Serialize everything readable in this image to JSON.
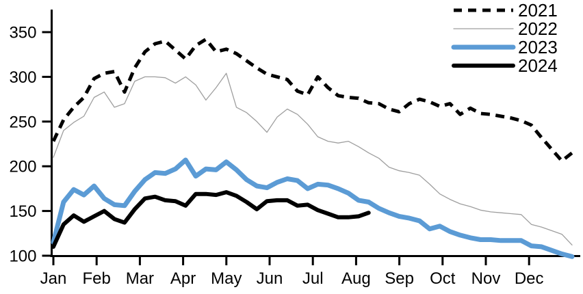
{
  "chart_data": {
    "type": "line",
    "title": "",
    "xlabel": "",
    "ylabel": "",
    "background_color": "#ffffff",
    "grid": false,
    "x_axis": {
      "tick_labels": [
        "Jan",
        "Feb",
        "Mar",
        "Apr",
        "May",
        "Jun",
        "Jul",
        "Aug",
        "Sep",
        "Oct",
        "Nov",
        "Dec"
      ],
      "unit": "week-of-year (52 points per full year)"
    },
    "y_axis": {
      "min": 100,
      "max": 350,
      "tick_step": 50,
      "tick_labels": [
        "100",
        "150",
        "200",
        "250",
        "300",
        "350"
      ]
    },
    "legend": {
      "position": "top-right",
      "entries": [
        "2021",
        "2022",
        "2023",
        "2024"
      ]
    },
    "series": [
      {
        "name": "2021",
        "line_style": "dashed",
        "color": "#000000",
        "stroke_width": 5,
        "values": [
          228,
          252,
          266,
          277,
          298,
          304,
          306,
          283,
          310,
          328,
          337,
          340,
          330,
          320,
          335,
          342,
          328,
          331,
          326,
          318,
          310,
          303,
          300,
          297,
          284,
          280,
          300,
          288,
          279,
          277,
          276,
          271,
          270,
          264,
          261,
          270,
          275,
          272,
          267,
          270,
          258,
          265,
          259,
          258,
          256,
          254,
          251,
          246,
          232,
          219,
          206,
          215
        ]
      },
      {
        "name": "2022",
        "line_style": "solid",
        "color": "#9e9e9e",
        "stroke_width": 1.3,
        "values": [
          210,
          240,
          249,
          256,
          277,
          283,
          266,
          270,
          295,
          300,
          300,
          299,
          293,
          300,
          291,
          274,
          288,
          304,
          266,
          260,
          250,
          238,
          255,
          264,
          258,
          247,
          233,
          228,
          226,
          228,
          222,
          215,
          209,
          199,
          195,
          193,
          190,
          180,
          169,
          163,
          158,
          155,
          151,
          149,
          148,
          147,
          146,
          135,
          132,
          128,
          124,
          112
        ]
      },
      {
        "name": "2023",
        "line_style": "solid",
        "color": "#5b9bd5",
        "stroke_width": 7,
        "values": [
          115,
          160,
          174,
          168,
          178,
          164,
          157,
          156,
          172,
          185,
          193,
          192,
          197,
          207,
          189,
          197,
          196,
          205,
          196,
          185,
          178,
          176,
          182,
          186,
          184,
          175,
          180,
          179,
          175,
          170,
          162,
          160,
          153,
          148,
          144,
          142,
          139,
          130,
          133,
          127,
          123,
          120,
          118,
          118,
          117,
          117,
          117,
          111,
          110,
          106,
          102,
          99
        ]
      },
      {
        "name": "2024",
        "line_style": "solid",
        "color": "#000000",
        "stroke_width": 6,
        "values": [
          110,
          135,
          145,
          138,
          144,
          150,
          141,
          137,
          152,
          164,
          166,
          162,
          161,
          156,
          169,
          169,
          168,
          171,
          167,
          160,
          152,
          161,
          162,
          162,
          156,
          157,
          151,
          147,
          143,
          143,
          144,
          148
        ]
      }
    ]
  }
}
